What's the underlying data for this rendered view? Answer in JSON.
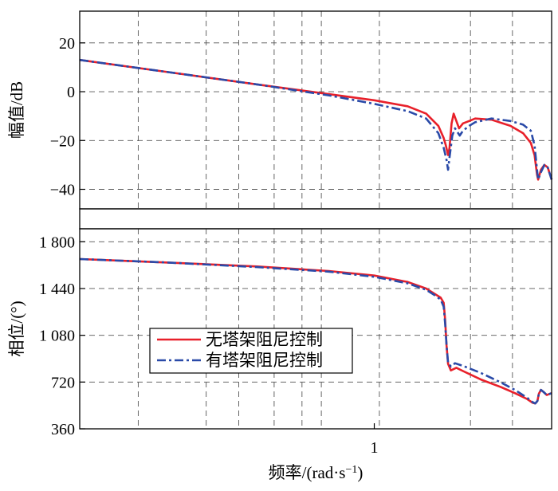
{
  "chart_data": [
    {
      "type": "line",
      "ylabel": "幅值/dB",
      "xscale": "log",
      "xlim": [
        0.1,
        4
      ],
      "ylim": [
        -48,
        33
      ],
      "yticks": [
        {
          "v": 20,
          "t": "20"
        },
        {
          "v": 0,
          "t": "0"
        },
        {
          "v": -20,
          "t": "−20"
        },
        {
          "v": -40,
          "t": "−40"
        }
      ],
      "grid": true,
      "series": [
        {
          "name": "无塔架阻尼控制",
          "color": "#e8202a",
          "style": "solid",
          "points": [
            [
              0.1,
              13
            ],
            [
              0.2,
              8
            ],
            [
              0.4,
              3
            ],
            [
              0.7,
              -1
            ],
            [
              1,
              -3.5
            ],
            [
              1.3,
              -6
            ],
            [
              1.5,
              -9
            ],
            [
              1.65,
              -14
            ],
            [
              1.72,
              -19
            ],
            [
              1.75,
              -22
            ],
            [
              1.78,
              -26
            ],
            [
              1.8,
              -23
            ],
            [
              1.83,
              -13
            ],
            [
              1.86,
              -9
            ],
            [
              1.9,
              -12
            ],
            [
              1.94,
              -15
            ],
            [
              2.0,
              -13
            ],
            [
              2.1,
              -12
            ],
            [
              2.2,
              -11
            ],
            [
              2.5,
              -11.5
            ],
            [
              2.9,
              -14
            ],
            [
              3.2,
              -17
            ],
            [
              3.4,
              -21
            ],
            [
              3.5,
              -26
            ],
            [
              3.57,
              -34
            ],
            [
              3.6,
              -36
            ],
            [
              3.68,
              -32
            ],
            [
              3.78,
              -30
            ],
            [
              3.88,
              -31
            ],
            [
              4,
              -36
            ]
          ]
        },
        {
          "name": "有塔架阻尼控制",
          "color": "#2a4aa8",
          "style": "dashdot",
          "points": [
            [
              0.1,
              13
            ],
            [
              0.2,
              8
            ],
            [
              0.4,
              3
            ],
            [
              0.7,
              -1.5
            ],
            [
              1,
              -5
            ],
            [
              1.3,
              -8
            ],
            [
              1.5,
              -11
            ],
            [
              1.65,
              -17
            ],
            [
              1.72,
              -23
            ],
            [
              1.76,
              -28
            ],
            [
              1.78,
              -32
            ],
            [
              1.8,
              -27
            ],
            [
              1.84,
              -18
            ],
            [
              1.88,
              -15
            ],
            [
              1.95,
              -18
            ],
            [
              2.0,
              -16
            ],
            [
              2.1,
              -14
            ],
            [
              2.2,
              -12.5
            ],
            [
              2.5,
              -11
            ],
            [
              2.9,
              -12
            ],
            [
              3.2,
              -13.5
            ],
            [
              3.4,
              -16
            ],
            [
              3.5,
              -22
            ],
            [
              3.57,
              -32
            ],
            [
              3.6,
              -36
            ],
            [
              3.68,
              -33
            ],
            [
              3.78,
              -30
            ],
            [
              3.88,
              -31
            ],
            [
              4,
              -36
            ]
          ]
        }
      ]
    },
    {
      "type": "line",
      "ylabel": "相位/(°)",
      "xlabel": "频率/(rad·s",
      "xlabel_sup": "−1",
      "xlabel_end": ")",
      "xscale": "log",
      "xlim": [
        0.1,
        4
      ],
      "ylim": [
        360,
        1900
      ],
      "xticks": [
        {
          "v": 1,
          "t": "1"
        }
      ],
      "yticks": [
        {
          "v": 1800,
          "t": "1 800"
        },
        {
          "v": 1440,
          "t": "1 440"
        },
        {
          "v": 1080,
          "t": "1 080"
        },
        {
          "v": 720,
          "t": "720"
        },
        {
          "v": 360,
          "t": "360"
        }
      ],
      "grid": true,
      "legend": "lower-left",
      "series": [
        {
          "name": "无塔架阻尼控制",
          "color": "#e8202a",
          "style": "solid",
          "points": [
            [
              0.1,
              1667
            ],
            [
              0.2,
              1640
            ],
            [
              0.4,
              1610
            ],
            [
              0.7,
              1575
            ],
            [
              1,
              1540
            ],
            [
              1.3,
              1490
            ],
            [
              1.5,
              1440
            ],
            [
              1.6,
              1400
            ],
            [
              1.68,
              1370
            ],
            [
              1.72,
              1330
            ],
            [
              1.74,
              1200
            ],
            [
              1.76,
              1000
            ],
            [
              1.78,
              860
            ],
            [
              1.82,
              810
            ],
            [
              1.9,
              830
            ],
            [
              2.0,
              805
            ],
            [
              2.3,
              740
            ],
            [
              2.7,
              680
            ],
            [
              3.0,
              635
            ],
            [
              3.3,
              590
            ],
            [
              3.45,
              560
            ],
            [
              3.52,
              555
            ],
            [
              3.58,
              575
            ],
            [
              3.62,
              630
            ],
            [
              3.68,
              660
            ],
            [
              3.75,
              645
            ],
            [
              3.85,
              620
            ],
            [
              4,
              635
            ]
          ]
        },
        {
          "name": "有塔架阻尼控制",
          "color": "#2a4aa8",
          "style": "dashdot",
          "points": [
            [
              0.1,
              1667
            ],
            [
              0.2,
              1640
            ],
            [
              0.4,
              1605
            ],
            [
              0.7,
              1570
            ],
            [
              1,
              1530
            ],
            [
              1.3,
              1480
            ],
            [
              1.5,
              1430
            ],
            [
              1.6,
              1390
            ],
            [
              1.68,
              1355
            ],
            [
              1.72,
              1300
            ],
            [
              1.74,
              1170
            ],
            [
              1.76,
              1000
            ],
            [
              1.78,
              870
            ],
            [
              1.82,
              840
            ],
            [
              1.88,
              865
            ],
            [
              2.0,
              845
            ],
            [
              2.3,
              790
            ],
            [
              2.7,
              715
            ],
            [
              3.0,
              660
            ],
            [
              3.3,
              600
            ],
            [
              3.45,
              565
            ],
            [
              3.52,
              555
            ],
            [
              3.58,
              575
            ],
            [
              3.62,
              630
            ],
            [
              3.68,
              660
            ],
            [
              3.75,
              645
            ],
            [
              3.85,
              620
            ],
            [
              4,
              635
            ]
          ]
        }
      ]
    }
  ]
}
